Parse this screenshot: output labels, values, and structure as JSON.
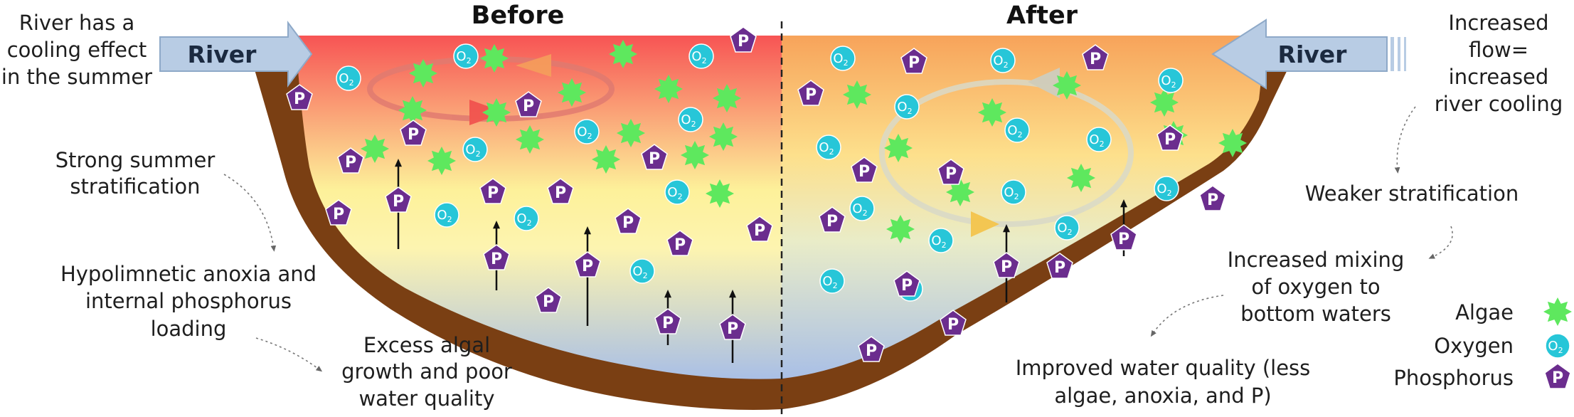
{
  "titles": {
    "before": "Before",
    "after": "After"
  },
  "river": {
    "left": "River",
    "right": "River"
  },
  "labels": {
    "cooling": [
      "River has a",
      "cooling effect",
      "in the summer"
    ],
    "strong_strat": [
      "Strong summer",
      "stratification"
    ],
    "anoxia": [
      "Hypolimnetic anoxia and",
      "internal phosphorus",
      "loading"
    ],
    "algal": [
      "Excess algal",
      "growth and poor",
      "water quality"
    ],
    "flow": [
      "Increased",
      "flow=",
      "increased",
      "river cooling"
    ],
    "weaker": [
      "Weaker stratification"
    ],
    "mixing": [
      "Increased mixing",
      "of oxygen to",
      "bottom waters"
    ],
    "improved": [
      "Improved water quality (less",
      "algae, anoxia, and P)"
    ]
  },
  "legend": [
    {
      "label": "Algae",
      "icon": "algae-icon"
    },
    {
      "label": "Oxygen",
      "icon": "oxygen-icon"
    },
    {
      "label": "Phosphorus",
      "icon": "phosphorus-icon"
    }
  ],
  "symbols": {
    "oxygen": "O",
    "oxygen_sub": "2",
    "phosphorus": "P"
  },
  "colors": {
    "warm_top": "#f75454",
    "mid": "#fdf19a",
    "cold_bottom": "#a9bfe6",
    "sediment": "#7a3f13",
    "algae": "#5ee85e",
    "oxygen": "#27c6d8",
    "phosphorus": "#6b2d8e",
    "river_arrow": "#b8cce4"
  },
  "counts": {
    "before_algae": 18,
    "after_algae": 10
  }
}
